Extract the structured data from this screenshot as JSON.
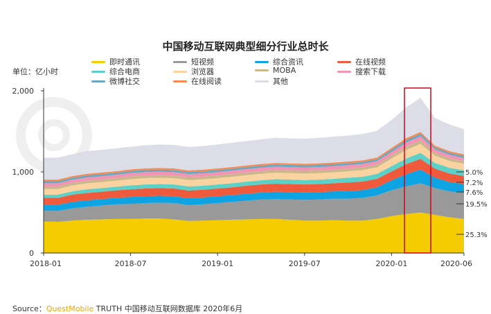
{
  "chart_data": {
    "type": "area",
    "title": "中国移动互联网典型细分行业总时长",
    "unit_label": "单位：亿小时",
    "y_ticks": [
      "0",
      "1,000",
      "2,000"
    ],
    "ylim": [
      0,
      2000
    ],
    "x_ticks": [
      "2018-01",
      "2018-07",
      "2019-01",
      "2019-07",
      "2020-01",
      "2020-06"
    ],
    "x_range": [
      "2018-01",
      "2020-06"
    ],
    "series": [
      {
        "name": "即时通讯",
        "color": "#f5cc00",
        "values": [
          390,
          385,
          400,
          410,
          415,
          420,
          420,
          425,
          425,
          415,
          395,
          400,
          405,
          410,
          415,
          420,
          420,
          410,
          400,
          400,
          405,
          400,
          400,
          420,
          455,
          480,
          500,
          470,
          440,
          420
        ]
      },
      {
        "name": "短视频",
        "color": "#999999",
        "values": [
          130,
          135,
          150,
          160,
          170,
          180,
          185,
          190,
          195,
          200,
          195,
          200,
          210,
          220,
          230,
          240,
          245,
          250,
          255,
          260,
          265,
          270,
          280,
          290,
          320,
          340,
          360,
          330,
          320,
          320
        ]
      },
      {
        "name": "综合资讯",
        "color": "#0ea3e2",
        "values": [
          75,
          75,
          80,
          80,
          80,
          82,
          85,
          85,
          85,
          85,
          85,
          85,
          85,
          85,
          85,
          85,
          90,
          90,
          90,
          90,
          90,
          95,
          95,
          100,
          120,
          150,
          170,
          130,
          115,
          110
        ]
      },
      {
        "name": "在线视频",
        "color": "#f05a3c",
        "values": [
          85,
          85,
          90,
          90,
          90,
          90,
          95,
          95,
          95,
          95,
          95,
          95,
          95,
          95,
          100,
          100,
          100,
          100,
          100,
          100,
          100,
          105,
          105,
          105,
          110,
          125,
          130,
          110,
          105,
          100
        ]
      },
      {
        "name": "综合电商",
        "color": "#5dd0c8",
        "values": [
          40,
          40,
          42,
          45,
          45,
          45,
          48,
          50,
          50,
          50,
          50,
          50,
          50,
          50,
          50,
          52,
          55,
          55,
          55,
          55,
          55,
          58,
          60,
          60,
          65,
          70,
          75,
          70,
          70,
          70
        ]
      },
      {
        "name": "浏览器",
        "color": "#fad3a0",
        "values": [
          70,
          70,
          72,
          75,
          75,
          75,
          78,
          78,
          78,
          78,
          78,
          78,
          78,
          80,
          80,
          80,
          80,
          80,
          80,
          80,
          80,
          80,
          82,
          82,
          95,
          105,
          110,
          90,
          85,
          80
        ]
      },
      {
        "name": "MOBA",
        "color": "#c8b88a",
        "values": [
          30,
          30,
          30,
          32,
          32,
          32,
          33,
          33,
          33,
          33,
          33,
          33,
          33,
          33,
          33,
          33,
          33,
          33,
          33,
          33,
          33,
          33,
          33,
          33,
          35,
          40,
          42,
          35,
          33,
          32
        ]
      },
      {
        "name": "搜索下载",
        "color": "#f294b4",
        "values": [
          40,
          40,
          40,
          40,
          40,
          40,
          42,
          42,
          42,
          42,
          42,
          42,
          42,
          42,
          42,
          42,
          42,
          42,
          42,
          42,
          42,
          42,
          42,
          42,
          45,
          50,
          52,
          42,
          42,
          40
        ]
      },
      {
        "name": "微博社交",
        "color": "#6ba7c0",
        "values": [
          25,
          25,
          25,
          25,
          25,
          25,
          25,
          25,
          25,
          25,
          25,
          25,
          25,
          25,
          25,
          25,
          25,
          25,
          25,
          25,
          25,
          25,
          25,
          25,
          28,
          30,
          30,
          25,
          25,
          25
        ]
      },
      {
        "name": "在线阅读",
        "color": "#f58a52",
        "values": [
          20,
          20,
          20,
          20,
          20,
          20,
          20,
          20,
          20,
          20,
          20,
          20,
          20,
          20,
          20,
          20,
          20,
          20,
          20,
          20,
          20,
          20,
          20,
          20,
          22,
          25,
          25,
          22,
          20,
          20
        ]
      },
      {
        "name": "其他",
        "color": "#dcdde6",
        "values": [
          270,
          270,
          270,
          280,
          280,
          280,
          280,
          285,
          290,
          290,
          290,
          290,
          295,
          300,
          300,
          305,
          310,
          310,
          310,
          315,
          320,
          320,
          325,
          330,
          345,
          380,
          420,
          340,
          330,
          310
        ]
      }
    ],
    "share_labels": [
      "5.0%",
      "7.2%",
      "7.6%",
      "19.5%",
      "25.3%"
    ],
    "highlight_range": [
      "2020-02",
      "2020-03"
    ]
  },
  "colors": {
    "axis": "#333333",
    "highlight_box": "#d0021b",
    "brand": "#f0a400"
  },
  "source": {
    "prefix": "Source：",
    "brand": "QuestMobile",
    "text": " TRUTH 中国移动互联网数据库 2020年6月"
  }
}
